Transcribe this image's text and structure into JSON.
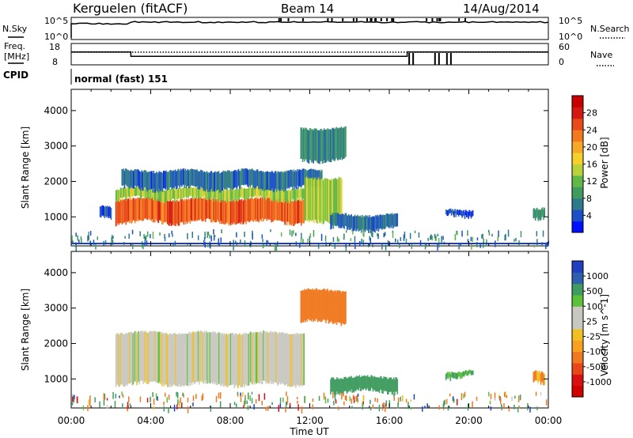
{
  "header": {
    "station": "Kerguelen (fitACF)",
    "beam": "Beam 14",
    "date": "14/Aug/2014"
  },
  "top_panels": {
    "nsky": {
      "label": "N.Sky",
      "tick_top": "10^5",
      "tick_bottom": "10^0"
    },
    "nsearch": {
      "label": "N.Search",
      "tick_top": "10^5",
      "tick_bottom": "10^0"
    },
    "freq": {
      "label_line1": "Freq.",
      "label_line2": "[MHz]",
      "tick_top": "18",
      "tick_bottom": "8"
    },
    "nave": {
      "label": "Nave",
      "tick_top": "60",
      "tick_bottom": "0"
    },
    "cpid": {
      "label": "CPID",
      "value": "normal (fast) 151"
    }
  },
  "power_scale": {
    "label": "Power [dB]",
    "ticks": [
      "4",
      "8",
      "12",
      "16",
      "20",
      "24",
      "28"
    ],
    "colors": [
      "#0010ff",
      "#1b4fc8",
      "#2f7a8a",
      "#3f9c5c",
      "#60b848",
      "#b9d23a",
      "#f6d02a",
      "#f7a826",
      "#f47a20",
      "#e84a18",
      "#d41a10",
      "#c80000"
    ]
  },
  "velocity_scale": {
    "label": "Velocity [m s^-1]",
    "ticks": [
      "1000",
      "500",
      "100",
      "25",
      "-25",
      "-100",
      "-500",
      "-1000"
    ],
    "colors": [
      "#2040c0",
      "#2f60b0",
      "#3f9c60",
      "#5cc038",
      "#c8c8c0",
      "#c8c8c0",
      "#f0c020",
      "#f8a020",
      "#f07820",
      "#e84818",
      "#d81010",
      "#d00000"
    ]
  },
  "x_axis": {
    "label": "Time UT",
    "ticks": [
      "00:00",
      "04:00",
      "08:00",
      "12:00",
      "16:00",
      "20:00",
      "00:00"
    ]
  },
  "y_axis": {
    "label": "Slant Range [km]",
    "ticks": [
      "1000",
      "2000",
      "3000",
      "4000"
    ]
  },
  "chart_data": {
    "type": "heatmap",
    "x_range_hours": [
      0,
      24
    ],
    "y_range_km": [
      180,
      4600
    ],
    "freq_steps_mhz": [
      {
        "start": 0.0,
        "end": 3.0,
        "value": 14.0
      },
      {
        "start": 3.0,
        "end": 16.9,
        "value": 12.0
      },
      {
        "start": 16.9,
        "end": 24.0,
        "value": 14.0
      }
    ],
    "power_bands": [
      {
        "start": 2.2,
        "end": 11.7,
        "lower_km": 850,
        "upper_km": 1500,
        "dB": 24
      },
      {
        "start": 2.2,
        "end": 11.7,
        "lower_km": 1500,
        "upper_km": 1800,
        "dB": 14
      },
      {
        "start": 2.5,
        "end": 12.6,
        "lower_km": 1800,
        "upper_km": 2300,
        "dB": 6
      },
      {
        "start": 11.7,
        "end": 13.6,
        "lower_km": 900,
        "upper_km": 2100,
        "dB": 14
      },
      {
        "start": 11.5,
        "end": 13.8,
        "lower_km": 2600,
        "upper_km": 3500,
        "dB": 8
      },
      {
        "start": 13.0,
        "end": 16.4,
        "lower_km": 650,
        "upper_km": 1050,
        "dB": 6
      },
      {
        "start": 1.4,
        "end": 2.0,
        "lower_km": 1000,
        "upper_km": 1300,
        "dB": 4
      },
      {
        "start": 18.8,
        "end": 20.2,
        "lower_km": 1050,
        "upper_km": 1200,
        "dB": 4
      },
      {
        "start": 23.2,
        "end": 23.8,
        "lower_km": 900,
        "upper_km": 1200,
        "dB": 8
      }
    ],
    "velocity_bands": [
      {
        "start": 2.2,
        "end": 11.7,
        "lower_km": 850,
        "upper_km": 2300,
        "velocity": 0
      },
      {
        "start": 11.5,
        "end": 13.8,
        "lower_km": 2600,
        "upper_km": 3500,
        "velocity": -300
      },
      {
        "start": 13.0,
        "end": 16.4,
        "lower_km": 650,
        "upper_km": 1050,
        "velocity": 200
      },
      {
        "start": 18.8,
        "end": 20.2,
        "lower_km": 1050,
        "upper_km": 1200,
        "velocity": 100
      },
      {
        "start": 23.2,
        "end": 23.8,
        "lower_km": 900,
        "upper_km": 1200,
        "velocity": -100
      }
    ]
  }
}
